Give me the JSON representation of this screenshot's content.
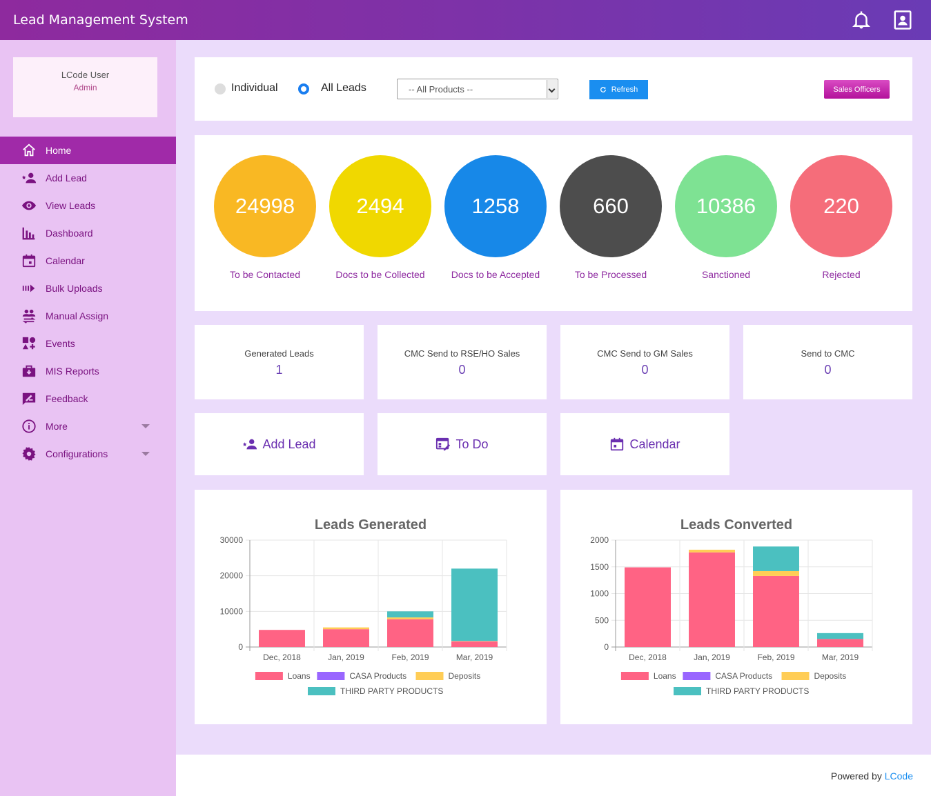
{
  "app": {
    "title": "Lead Management System"
  },
  "user": {
    "name": "LCode User",
    "role": "Admin"
  },
  "nav": [
    {
      "label": "Home",
      "icon": "home-icon"
    },
    {
      "label": "Add Lead",
      "icon": "add-person-icon"
    },
    {
      "label": "View Leads",
      "icon": "eye-icon"
    },
    {
      "label": "Dashboard",
      "icon": "bar-chart-icon"
    },
    {
      "label": "Calendar",
      "icon": "calendar-icon"
    },
    {
      "label": "Bulk Uploads",
      "icon": "bulk-upload-icon"
    },
    {
      "label": "Manual Assign",
      "icon": "people-swap-icon"
    },
    {
      "label": "Events",
      "icon": "events-icon"
    },
    {
      "label": "MIS Reports",
      "icon": "briefcase-download-icon"
    },
    {
      "label": "Feedback",
      "icon": "feedback-icon"
    },
    {
      "label": "More",
      "icon": "info-icon"
    },
    {
      "label": "Configurations",
      "icon": "gear-icon"
    }
  ],
  "filters": {
    "individual_label": "Individual",
    "all_leads_label": "All Leads",
    "selected_mode": "All Leads",
    "product_select": "-- All Products --",
    "refresh_label": "Refresh",
    "sales_officers_label": "Sales Officers"
  },
  "stats": [
    {
      "value": "24998",
      "label": "To be Contacted",
      "color": "#f9b823"
    },
    {
      "value": "2494",
      "label": "Docs to be Collected",
      "color": "#f0d800"
    },
    {
      "value": "1258",
      "label": "Docs to be Accepted",
      "color": "#1788e8"
    },
    {
      "value": "660",
      "label": "To be Processed",
      "color": "#4d4d4d"
    },
    {
      "value": "10386",
      "label": "Sanctioned",
      "color": "#7ee293"
    },
    {
      "value": "220",
      "label": "Rejected",
      "color": "#f56d7a"
    }
  ],
  "counters": [
    {
      "label": "Generated Leads",
      "value": "1"
    },
    {
      "label": "CMC Send to RSE/HO Sales",
      "value": "0"
    },
    {
      "label": "CMC Send to GM Sales",
      "value": "0"
    },
    {
      "label": "Send to CMC",
      "value": "0"
    }
  ],
  "actions": [
    {
      "label": "Add Lead",
      "icon": "add-person-icon"
    },
    {
      "label": "To Do",
      "icon": "todo-icon"
    },
    {
      "label": "Calendar",
      "icon": "calendar-icon"
    }
  ],
  "chart_data": [
    {
      "type": "bar",
      "stacked": true,
      "title": "Leads Generated",
      "categories": [
        "Dec, 2018",
        "Jan, 2019",
        "Feb, 2019",
        "Mar, 2019"
      ],
      "ylim": [
        0,
        30000
      ],
      "yticks": [
        0,
        10000,
        20000,
        30000
      ],
      "series": [
        {
          "name": "Loans",
          "color": "#ff6384",
          "values": [
            4800,
            5000,
            7800,
            1600
          ]
        },
        {
          "name": "CASA Products",
          "color": "#9966ff",
          "values": [
            0,
            0,
            0,
            0
          ]
        },
        {
          "name": "Deposits",
          "color": "#ffcd56",
          "values": [
            0,
            500,
            500,
            100
          ]
        },
        {
          "name": "THIRD PARTY PRODUCTS",
          "color": "#4bc0c0",
          "values": [
            0,
            0,
            1700,
            20300
          ]
        }
      ],
      "legend": "bottom"
    },
    {
      "type": "bar",
      "stacked": true,
      "title": "Leads Converted",
      "categories": [
        "Dec, 2018",
        "Jan, 2019",
        "Feb, 2019",
        "Mar, 2019"
      ],
      "ylim": [
        0,
        2000
      ],
      "yticks": [
        0,
        500,
        1000,
        1500,
        2000
      ],
      "series": [
        {
          "name": "Loans",
          "color": "#ff6384",
          "values": [
            1490,
            1770,
            1330,
            150
          ]
        },
        {
          "name": "CASA Products",
          "color": "#9966ff",
          "values": [
            0,
            0,
            0,
            0
          ]
        },
        {
          "name": "Deposits",
          "color": "#ffcd56",
          "values": [
            0,
            50,
            90,
            0
          ]
        },
        {
          "name": "THIRD PARTY PRODUCTS",
          "color": "#4bc0c0",
          "values": [
            0,
            0,
            460,
            110
          ]
        }
      ],
      "legend": "bottom"
    }
  ],
  "footer": {
    "powered_prefix": "Powered by",
    "brand": "LCode"
  }
}
